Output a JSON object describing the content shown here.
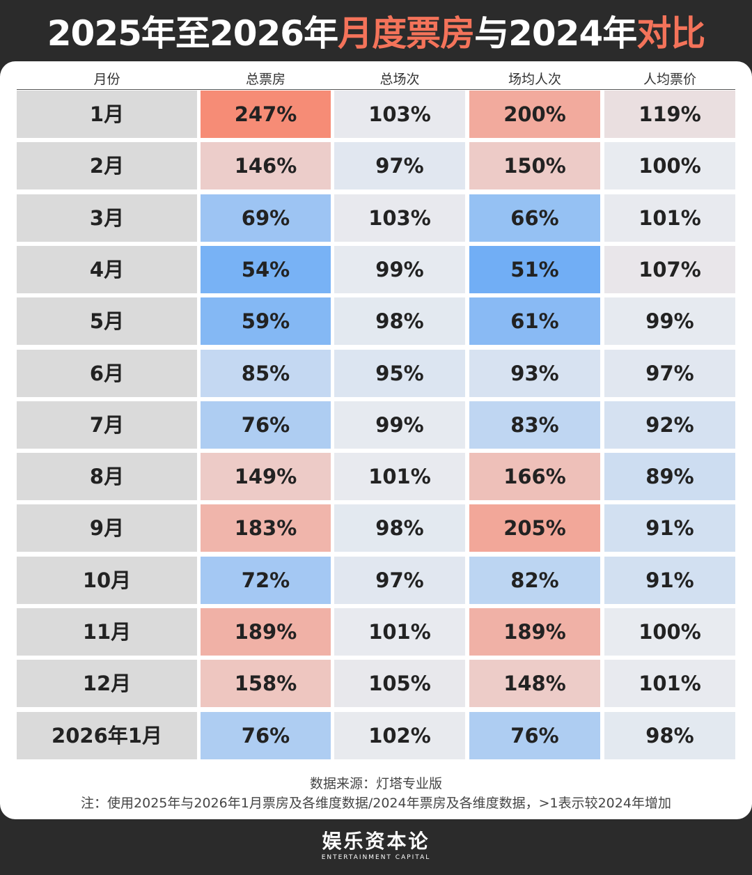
{
  "title": {
    "parts": [
      "2025年至2026年",
      "月度票房",
      "与2024年",
      "对比"
    ]
  },
  "table": {
    "header": [
      "月份",
      "总票房",
      "总场次",
      "场均人次",
      "人均票价"
    ],
    "rows": [
      [
        "1月",
        "247%",
        "103%",
        "200%",
        "119%"
      ],
      [
        "2月",
        "146%",
        "97%",
        "150%",
        "100%"
      ],
      [
        "3月",
        "69%",
        "103%",
        "66%",
        "101%"
      ],
      [
        "4月",
        "54%",
        "99%",
        "51%",
        "107%"
      ],
      [
        "5月",
        "59%",
        "98%",
        "61%",
        "99%"
      ],
      [
        "6月",
        "85%",
        "95%",
        "93%",
        "97%"
      ],
      [
        "7月",
        "76%",
        "99%",
        "83%",
        "92%"
      ],
      [
        "8月",
        "149%",
        "101%",
        "166%",
        "89%"
      ],
      [
        "9月",
        "183%",
        "98%",
        "205%",
        "91%"
      ],
      [
        "10月",
        "72%",
        "97%",
        "82%",
        "91%"
      ],
      [
        "11月",
        "189%",
        "101%",
        "189%",
        "100%"
      ],
      [
        "12月",
        "158%",
        "105%",
        "148%",
        "101%"
      ],
      [
        "2026年1月",
        "76%",
        "102%",
        "76%",
        "98%"
      ]
    ]
  },
  "footer": {
    "source": "数据来源：灯塔专业版",
    "note": "注：使用2025年与2026年1月票房及各维度数据/2024年票房及各维度数据，>1表示较2024年增加"
  },
  "logo": {
    "name": "娱乐资本论",
    "subtitle": "ENTERTAINMENT CAPITAL"
  }
}
